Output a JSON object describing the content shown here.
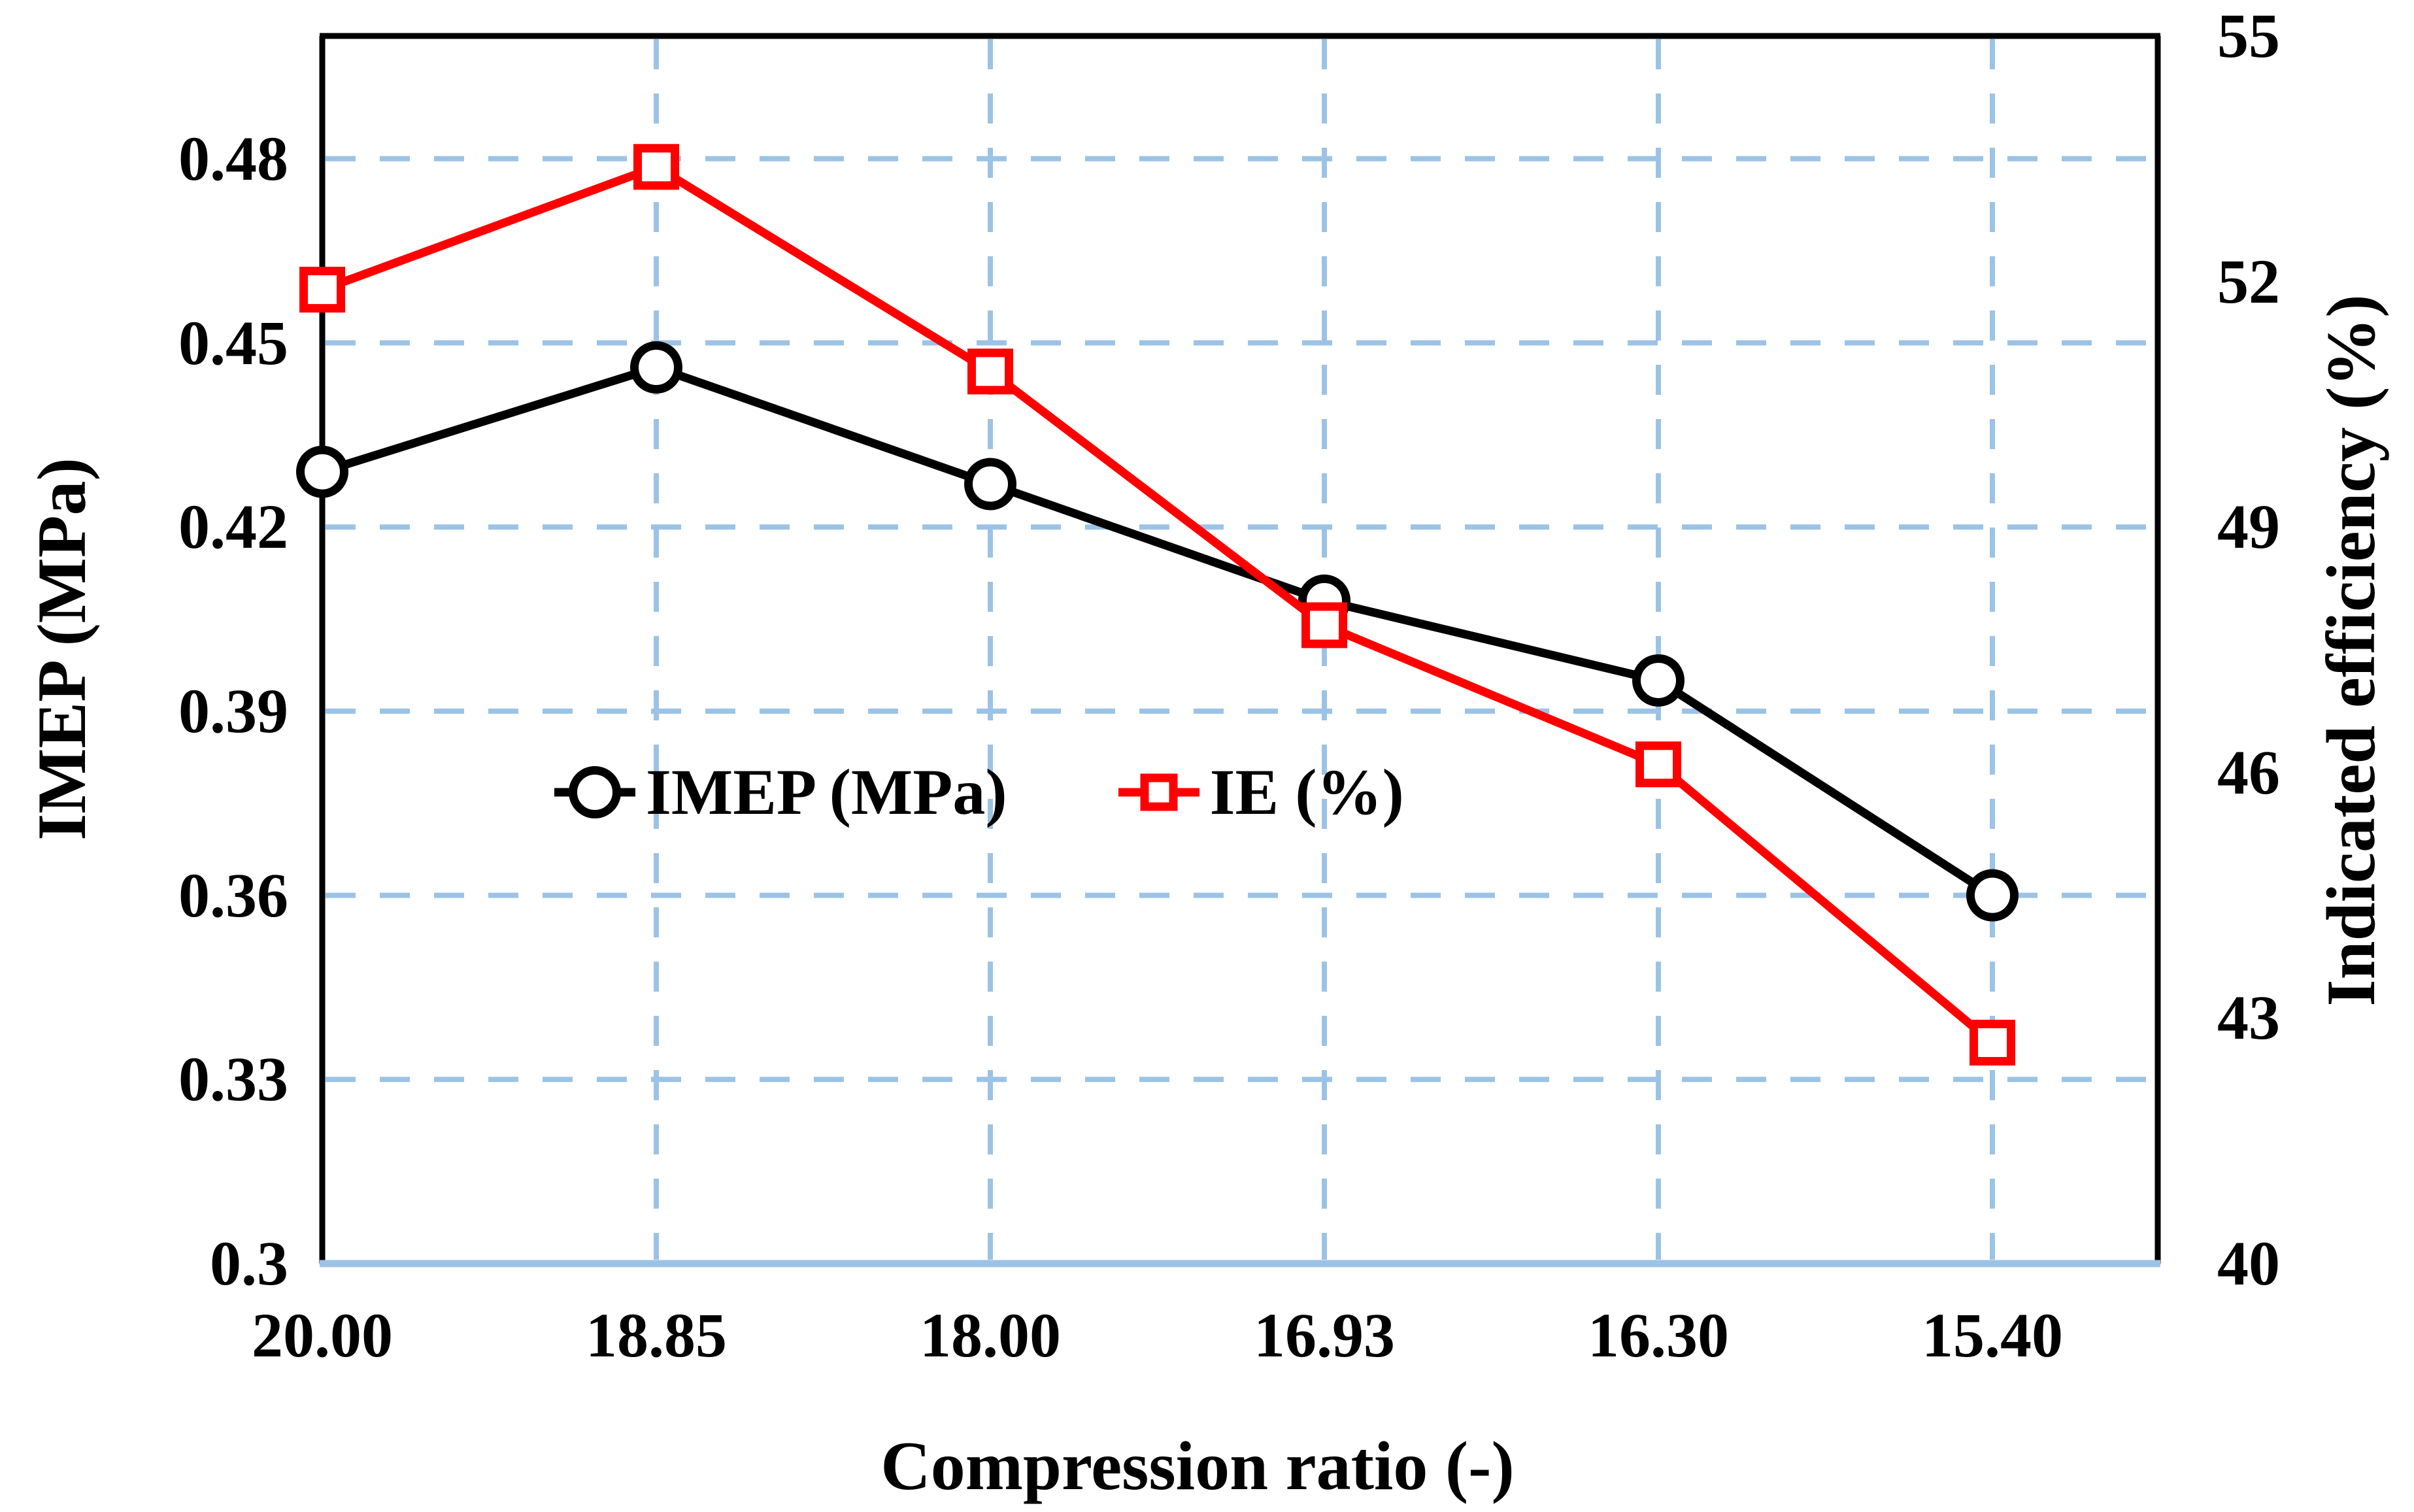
{
  "chart_data": {
    "type": "line",
    "title": "",
    "categories": [
      "20.00",
      "18.85",
      "18.00",
      "16.93",
      "16.30",
      "15.40"
    ],
    "xlabel": "Compression ratio (-)",
    "series": [
      {
        "name": "IMEP (MPa)",
        "axis": "left",
        "color": "#000000",
        "marker": "circle",
        "values": [
          0.429,
          0.446,
          0.427,
          0.408,
          0.395,
          0.36
        ]
      },
      {
        "name": "IE (%)",
        "axis": "right",
        "color": "#ff0000",
        "marker": "square",
        "values": [
          51.9,
          53.4,
          50.9,
          47.8,
          46.1,
          42.7
        ]
      }
    ],
    "left_axis": {
      "label": "IMEP (MPa)",
      "min": 0.3,
      "max": 0.5,
      "ticks": [
        {
          "value": 0.48,
          "label": "0.48"
        },
        {
          "value": 0.45,
          "label": "0.45"
        },
        {
          "value": 0.42,
          "label": "0.42"
        },
        {
          "value": 0.39,
          "label": "0.39"
        },
        {
          "value": 0.36,
          "label": "0.36"
        },
        {
          "value": 0.33,
          "label": "0.33"
        },
        {
          "value": 0.3,
          "label": "0.3"
        }
      ]
    },
    "right_axis": {
      "label": "Indicated efficiency (%)",
      "min": 40,
      "max": 55,
      "ticks": [
        {
          "value": 55,
          "label": "55"
        },
        {
          "value": 52,
          "label": "52"
        },
        {
          "value": 49,
          "label": "49"
        },
        {
          "value": 46,
          "label": "46"
        },
        {
          "value": 43,
          "label": "43"
        },
        {
          "value": 40,
          "label": "40"
        }
      ]
    },
    "grid": {
      "color": "#9cc3e6",
      "h_values": [
        0.48,
        0.45,
        0.42,
        0.39,
        0.36,
        0.33
      ],
      "v_category_indices": [
        1,
        2,
        3,
        4,
        5
      ],
      "dash": [
        46,
        37
      ]
    },
    "frame": {
      "axis_color": "#000000",
      "bottom_axis_color": "#9cc3e6"
    },
    "legend": {
      "position": "inside-center-left",
      "items": [
        {
          "label": "IMEP (MPa)",
          "marker": "circle",
          "color": "#000000"
        },
        {
          "label": "IE (%)",
          "marker": "square",
          "color": "#ff0000"
        }
      ]
    }
  },
  "colors": {
    "background": "#ffffff",
    "grid": "#9cc3e6",
    "imep_series": "#000000",
    "ie_series": "#ff0000"
  }
}
